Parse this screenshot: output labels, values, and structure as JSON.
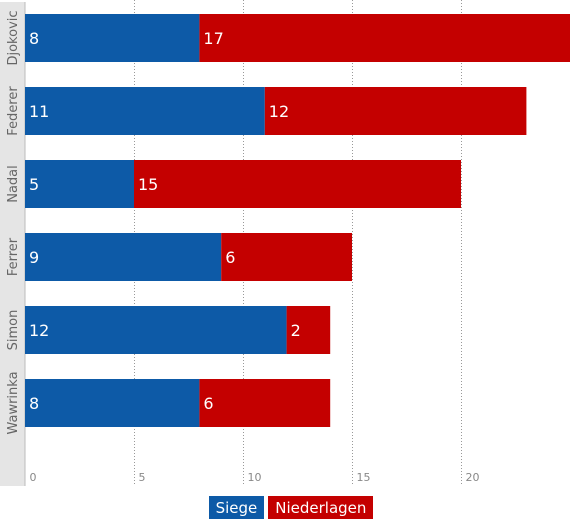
{
  "chart_data": {
    "type": "bar",
    "orientation": "horizontal",
    "stacked": true,
    "categories": [
      "Djokovic",
      "Federer",
      "Nadal",
      "Ferrer",
      "Simon",
      "Wawrinka"
    ],
    "series": [
      {
        "name": "Siege",
        "color": "#0d5aa7",
        "values": [
          8,
          11,
          5,
          9,
          12,
          8
        ]
      },
      {
        "name": "Niederlagen",
        "color": "#c40000",
        "values": [
          17,
          12,
          15,
          6,
          2,
          6
        ]
      }
    ],
    "xlim": [
      0,
      25
    ],
    "xticks": [
      0,
      5,
      10,
      15,
      20
    ],
    "grid": true,
    "legend_position": "bottom-center",
    "title": "",
    "xlabel": "",
    "ylabel": ""
  },
  "colors": {
    "axis_band": "#e5e5e5",
    "grid": "#999999",
    "tick_text": "#888888",
    "category_text": "#666666",
    "label_text": "#ffffff"
  }
}
